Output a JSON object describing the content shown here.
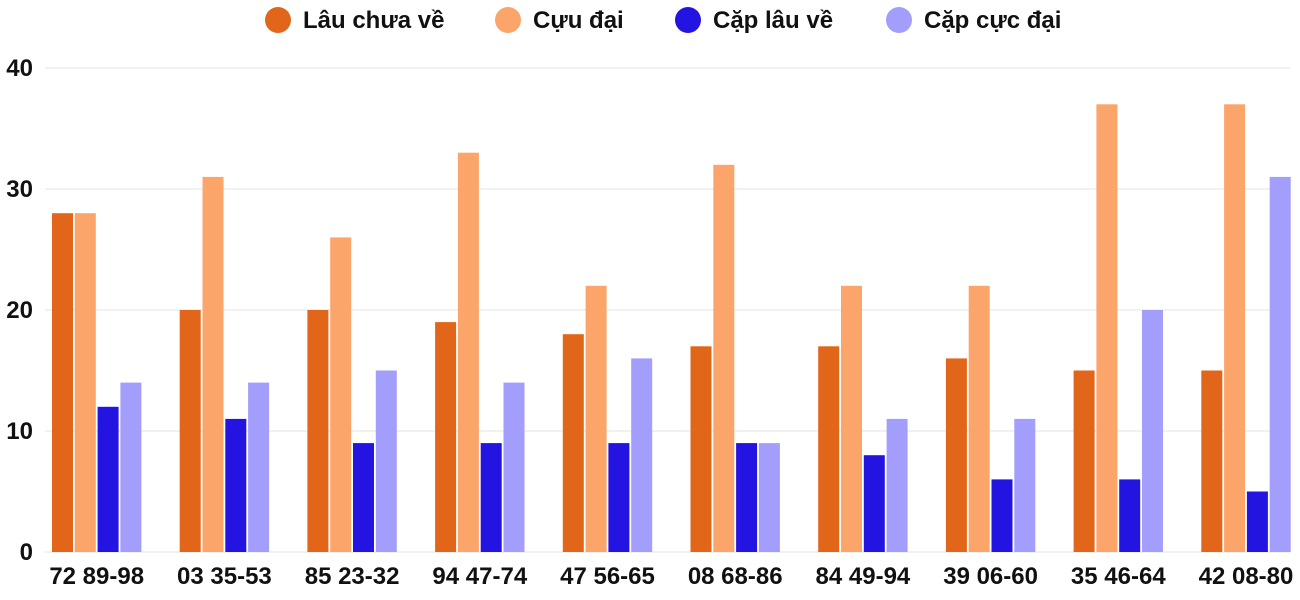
{
  "chart_data": {
    "type": "bar",
    "categories": [
      "72 89-98",
      "03 35-53",
      "85 23-32",
      "94 47-74",
      "47 56-65",
      "08 68-86",
      "84 49-94",
      "39 06-60",
      "35 46-64",
      "42 08-80"
    ],
    "series": [
      {
        "name": "Lâu chưa về",
        "color": "#e2661a",
        "values": [
          28,
          20,
          20,
          19,
          18,
          17,
          17,
          16,
          15,
          15
        ]
      },
      {
        "name": "Cựu đại",
        "color": "#fca56b",
        "values": [
          28,
          31,
          26,
          33,
          22,
          32,
          22,
          22,
          37,
          37
        ]
      },
      {
        "name": "Cặp lâu về",
        "color": "#2414e2",
        "values": [
          12,
          11,
          9,
          9,
          9,
          9,
          8,
          6,
          6,
          5
        ]
      },
      {
        "name": "Cặp cực đại",
        "color": "#a39efc",
        "values": [
          14,
          14,
          15,
          14,
          16,
          9,
          11,
          11,
          20,
          31
        ]
      }
    ],
    "yticks": [
      "0",
      "10",
      "20",
      "30",
      "40"
    ],
    "ylim": [
      0,
      40
    ],
    "grid": true,
    "legend_position": "top"
  }
}
